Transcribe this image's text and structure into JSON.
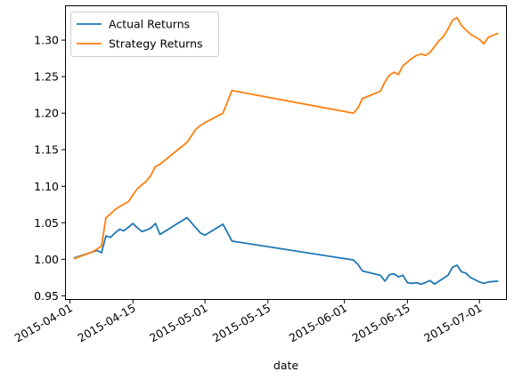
{
  "chart_data": {
    "type": "line",
    "title": "",
    "xlabel": "date",
    "ylabel": "",
    "xlim": [
      "2015-03-31",
      "2015-07-07"
    ],
    "ylim": [
      0.945,
      1.347
    ],
    "grid": false,
    "legend_position": "top-left",
    "x_ticks": [
      {
        "date": "2015-04-01",
        "label": "2015-04-01"
      },
      {
        "date": "2015-04-15",
        "label": "2015-04-15"
      },
      {
        "date": "2015-05-01",
        "label": "2015-05-01"
      },
      {
        "date": "2015-05-15",
        "label": "2015-05-15"
      },
      {
        "date": "2015-06-01",
        "label": "2015-06-01"
      },
      {
        "date": "2015-06-15",
        "label": "2015-06-15"
      },
      {
        "date": "2015-07-01",
        "label": "2015-07-01"
      }
    ],
    "y_ticks": [
      {
        "value": 0.95,
        "label": "0.95"
      },
      {
        "value": 1.0,
        "label": "1.00"
      },
      {
        "value": 1.05,
        "label": "1.05"
      },
      {
        "value": 1.1,
        "label": "1.10"
      },
      {
        "value": 1.15,
        "label": "1.15"
      },
      {
        "value": 1.2,
        "label": "1.20"
      },
      {
        "value": 1.25,
        "label": "1.25"
      },
      {
        "value": 1.3,
        "label": "1.30"
      }
    ],
    "series": [
      {
        "name": "Actual Returns",
        "color": "#1f77b4",
        "points": [
          [
            "2015-04-02",
            1.002
          ],
          [
            "2015-04-07",
            1.012
          ],
          [
            "2015-04-08",
            1.009
          ],
          [
            "2015-04-09",
            1.032
          ],
          [
            "2015-04-10",
            1.03
          ],
          [
            "2015-04-11",
            1.036
          ],
          [
            "2015-04-12",
            1.041
          ],
          [
            "2015-04-13",
            1.039
          ],
          [
            "2015-04-15",
            1.049
          ],
          [
            "2015-04-16",
            1.043
          ],
          [
            "2015-04-17",
            1.038
          ],
          [
            "2015-04-18",
            1.04
          ],
          [
            "2015-04-19",
            1.043
          ],
          [
            "2015-04-20",
            1.049
          ],
          [
            "2015-04-21",
            1.034
          ],
          [
            "2015-04-27",
            1.057
          ],
          [
            "2015-04-30",
            1.036
          ],
          [
            "2015-05-01",
            1.033
          ],
          [
            "2015-05-05",
            1.048
          ],
          [
            "2015-05-07",
            1.025
          ],
          [
            "2015-06-03",
            0.999
          ],
          [
            "2015-06-04",
            0.993
          ],
          [
            "2015-06-05",
            0.984
          ],
          [
            "2015-06-09",
            0.978
          ],
          [
            "2015-06-10",
            0.97
          ],
          [
            "2015-06-11",
            0.979
          ],
          [
            "2015-06-12",
            0.98
          ],
          [
            "2015-06-13",
            0.976
          ],
          [
            "2015-06-14",
            0.978
          ],
          [
            "2015-06-15",
            0.968
          ],
          [
            "2015-06-16",
            0.967
          ],
          [
            "2015-06-17",
            0.968
          ],
          [
            "2015-06-18",
            0.966
          ],
          [
            "2015-06-19",
            0.968
          ],
          [
            "2015-06-20",
            0.971
          ],
          [
            "2015-06-21",
            0.966
          ],
          [
            "2015-06-22",
            0.97
          ],
          [
            "2015-06-23",
            0.974
          ],
          [
            "2015-06-24",
            0.978
          ],
          [
            "2015-06-25",
            0.989
          ],
          [
            "2015-06-26",
            0.992
          ],
          [
            "2015-06-27",
            0.983
          ],
          [
            "2015-06-28",
            0.981
          ],
          [
            "2015-06-29",
            0.975
          ],
          [
            "2015-07-01",
            0.969
          ],
          [
            "2015-07-02",
            0.967
          ],
          [
            "2015-07-03",
            0.969
          ],
          [
            "2015-07-05",
            0.97
          ]
        ]
      },
      {
        "name": "Strategy Returns",
        "color": "#ff7f0e",
        "points": [
          [
            "2015-04-02",
            1.001
          ],
          [
            "2015-04-06",
            1.01
          ],
          [
            "2015-04-08",
            1.018
          ],
          [
            "2015-04-09",
            1.057
          ],
          [
            "2015-04-10",
            1.062
          ],
          [
            "2015-04-11",
            1.068
          ],
          [
            "2015-04-12",
            1.072
          ],
          [
            "2015-04-14",
            1.079
          ],
          [
            "2015-04-15",
            1.088
          ],
          [
            "2015-04-16",
            1.097
          ],
          [
            "2015-04-17",
            1.102
          ],
          [
            "2015-04-18",
            1.107
          ],
          [
            "2015-04-19",
            1.115
          ],
          [
            "2015-04-20",
            1.127
          ],
          [
            "2015-04-21",
            1.13
          ],
          [
            "2015-04-27",
            1.16
          ],
          [
            "2015-04-29",
            1.178
          ],
          [
            "2015-04-30",
            1.183
          ],
          [
            "2015-05-01",
            1.187
          ],
          [
            "2015-05-05",
            1.2
          ],
          [
            "2015-05-07",
            1.231
          ],
          [
            "2015-06-03",
            1.2
          ],
          [
            "2015-06-04",
            1.207
          ],
          [
            "2015-06-05",
            1.22
          ],
          [
            "2015-06-09",
            1.23
          ],
          [
            "2015-06-10",
            1.243
          ],
          [
            "2015-06-11",
            1.252
          ],
          [
            "2015-06-12",
            1.256
          ],
          [
            "2015-06-13",
            1.253
          ],
          [
            "2015-06-14",
            1.265
          ],
          [
            "2015-06-15",
            1.27
          ],
          [
            "2015-06-16",
            1.275
          ],
          [
            "2015-06-17",
            1.279
          ],
          [
            "2015-06-18",
            1.281
          ],
          [
            "2015-06-19",
            1.279
          ],
          [
            "2015-06-20",
            1.283
          ],
          [
            "2015-06-21",
            1.291
          ],
          [
            "2015-06-22",
            1.299
          ],
          [
            "2015-06-23",
            1.305
          ],
          [
            "2015-06-24",
            1.315
          ],
          [
            "2015-06-25",
            1.327
          ],
          [
            "2015-06-26",
            1.331
          ],
          [
            "2015-06-27",
            1.32
          ],
          [
            "2015-06-28",
            1.314
          ],
          [
            "2015-06-29",
            1.308
          ],
          [
            "2015-07-01",
            1.301
          ],
          [
            "2015-07-02",
            1.295
          ],
          [
            "2015-07-03",
            1.304
          ],
          [
            "2015-07-05",
            1.309
          ]
        ]
      }
    ]
  }
}
